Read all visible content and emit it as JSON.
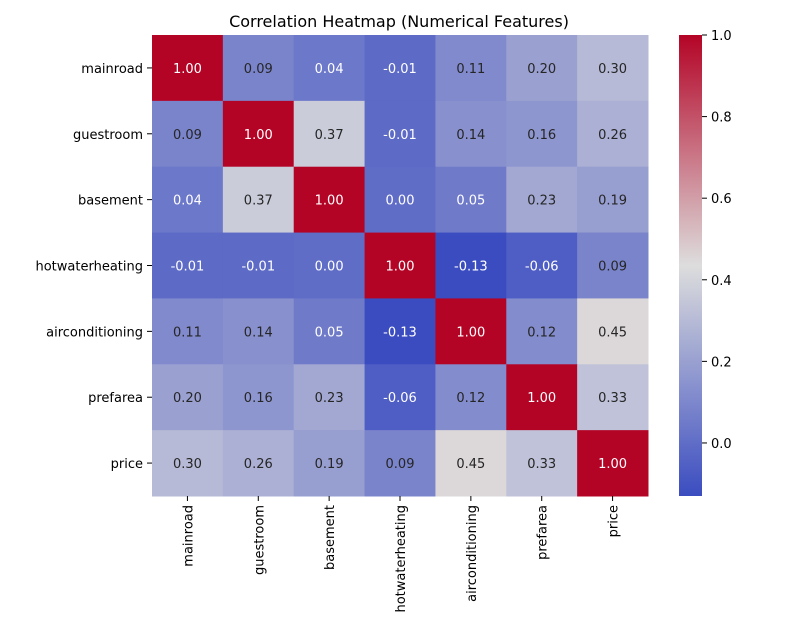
{
  "chart_data": {
    "type": "heatmap",
    "title": "Correlation Heatmap (Numerical Features)",
    "xlabel": "",
    "ylabel": "",
    "rows": [
      "mainroad",
      "guestroom",
      "basement",
      "hotwaterheating",
      "airconditioning",
      "prefarea",
      "price"
    ],
    "columns": [
      "mainroad",
      "guestroom",
      "basement",
      "hotwaterheating",
      "airconditioning",
      "prefarea",
      "price"
    ],
    "values": [
      [
        1.0,
        0.09,
        0.04,
        -0.01,
        0.11,
        0.2,
        0.3
      ],
      [
        0.09,
        1.0,
        0.37,
        -0.01,
        0.14,
        0.16,
        0.26
      ],
      [
        0.04,
        0.37,
        1.0,
        0.0,
        0.05,
        0.23,
        0.19
      ],
      [
        -0.01,
        -0.01,
        0.0,
        1.0,
        -0.13,
        -0.06,
        0.09
      ],
      [
        0.11,
        0.14,
        0.05,
        -0.13,
        1.0,
        0.12,
        0.45
      ],
      [
        0.2,
        0.16,
        0.23,
        -0.06,
        0.12,
        1.0,
        0.33
      ],
      [
        0.3,
        0.26,
        0.19,
        0.09,
        0.45,
        0.33,
        1.0
      ]
    ],
    "value_format": "0.00",
    "colormap": "coolwarm",
    "colormap_stops": [
      "#3b4cc0",
      "#dddddd",
      "#b40426"
    ],
    "color_range": [
      -0.13,
      1.0
    ],
    "colorbar": {
      "position": "right",
      "ticks": [
        0.0,
        0.2,
        0.4,
        0.6,
        0.8,
        1.0
      ],
      "tick_labels": [
        "0.0",
        "0.2",
        "0.4",
        "0.6",
        "0.8",
        "1.0"
      ]
    },
    "grid": false,
    "legend": "none"
  }
}
